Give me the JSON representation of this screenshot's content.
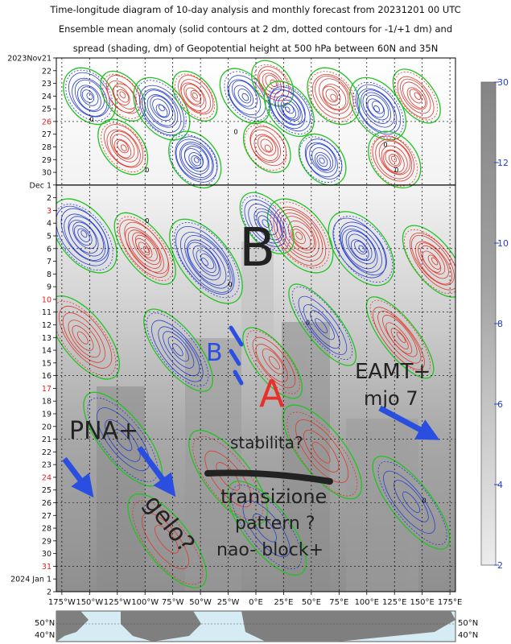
{
  "title_lines": [
    "Time-longitude diagram of 10-day analysis and monthly forecast from 20231201 00 UTC",
    "Ensemble mean anomaly (solid contours at 2 dm, dotted contours for -1/+1 dm) and",
    "spread (shading, dm) of Geopotential height at 500 hPa between 60N and 35N"
  ],
  "chart_data": {
    "type": "heatmap",
    "x_ticks": [
      "175°W",
      "150°W",
      "125°W",
      "100°W",
      "75°W",
      "50°W",
      "25°W",
      "0°E",
      "25°E",
      "50°E",
      "75°E",
      "100°E",
      "125°E",
      "150°E",
      "175°E"
    ],
    "x_range": [
      -180,
      180
    ],
    "y_ticks": [
      {
        "label": "2023Nov21",
        "day": 0,
        "weekend": false
      },
      {
        "label": "22",
        "day": 1,
        "weekend": false
      },
      {
        "label": "23",
        "day": 2,
        "weekend": false
      },
      {
        "label": "24",
        "day": 3,
        "weekend": false
      },
      {
        "label": "25",
        "day": 4,
        "weekend": false
      },
      {
        "label": "26",
        "day": 5,
        "weekend": true
      },
      {
        "label": "27",
        "day": 6,
        "weekend": false
      },
      {
        "label": "28",
        "day": 7,
        "weekend": false
      },
      {
        "label": "29",
        "day": 8,
        "weekend": false
      },
      {
        "label": "30",
        "day": 9,
        "weekend": false
      },
      {
        "label": "Dec 1",
        "day": 10,
        "weekend": false
      },
      {
        "label": "2",
        "day": 11,
        "weekend": false
      },
      {
        "label": "3",
        "day": 12,
        "weekend": true
      },
      {
        "label": "4",
        "day": 13,
        "weekend": false
      },
      {
        "label": "5",
        "day": 14,
        "weekend": false
      },
      {
        "label": "6",
        "day": 15,
        "weekend": false
      },
      {
        "label": "7",
        "day": 16,
        "weekend": false
      },
      {
        "label": "8",
        "day": 17,
        "weekend": false
      },
      {
        "label": "9",
        "day": 18,
        "weekend": false
      },
      {
        "label": "10",
        "day": 19,
        "weekend": true
      },
      {
        "label": "11",
        "day": 20,
        "weekend": false
      },
      {
        "label": "12",
        "day": 21,
        "weekend": false
      },
      {
        "label": "13",
        "day": 22,
        "weekend": false
      },
      {
        "label": "14",
        "day": 23,
        "weekend": false
      },
      {
        "label": "15",
        "day": 24,
        "weekend": false
      },
      {
        "label": "16",
        "day": 25,
        "weekend": false
      },
      {
        "label": "17",
        "day": 26,
        "weekend": true
      },
      {
        "label": "18",
        "day": 27,
        "weekend": false
      },
      {
        "label": "19",
        "day": 28,
        "weekend": false
      },
      {
        "label": "20",
        "day": 29,
        "weekend": false
      },
      {
        "label": "21",
        "day": 30,
        "weekend": false
      },
      {
        "label": "22",
        "day": 31,
        "weekend": false
      },
      {
        "label": "23",
        "day": 32,
        "weekend": false
      },
      {
        "label": "24",
        "day": 33,
        "weekend": true
      },
      {
        "label": "25",
        "day": 34,
        "weekend": false
      },
      {
        "label": "26",
        "day": 35,
        "weekend": false
      },
      {
        "label": "27",
        "day": 36,
        "weekend": false
      },
      {
        "label": "28",
        "day": 37,
        "weekend": false
      },
      {
        "label": "29",
        "day": 38,
        "weekend": false
      },
      {
        "label": "30",
        "day": 39,
        "weekend": false
      },
      {
        "label": "31",
        "day": 40,
        "weekend": true
      },
      {
        "label": "2024 Jan 1",
        "day": 41,
        "weekend": false
      },
      {
        "label": "2",
        "day": 42,
        "weekend": false
      }
    ],
    "analysis_end_day": 10,
    "colorbar": {
      "ticks": [
        2,
        4,
        6,
        8,
        10,
        12,
        30
      ],
      "unit": "dm"
    },
    "map_lat_labels": [
      "50°N",
      "40°N"
    ],
    "contour_label": "0",
    "annotations": [
      {
        "text": "B",
        "color": "#222222"
      },
      {
        "text": "B",
        "color": "#2a4fe0"
      },
      {
        "text": "A",
        "color": "#e8302a"
      },
      {
        "text": "EAMT+",
        "color": "#222222"
      },
      {
        "text": "mjo 7",
        "color": "#222222"
      },
      {
        "text": "PNA+",
        "color": "#222222"
      },
      {
        "text": "stabilita?",
        "color": "#222222"
      },
      {
        "text": "transizione",
        "color": "#222222"
      },
      {
        "text": "pattern ?",
        "color": "#222222"
      },
      {
        "text": "nao- block+",
        "color": "#222222"
      },
      {
        "text": "gelo?",
        "color": "#222222"
      }
    ],
    "colors": {
      "positive": "#e03a2e",
      "negative": "#2840d0",
      "zero": "#22c322",
      "weekend_label": "#e02020",
      "arrow": "#2a4fe0",
      "annotation_text": "#222222"
    }
  }
}
